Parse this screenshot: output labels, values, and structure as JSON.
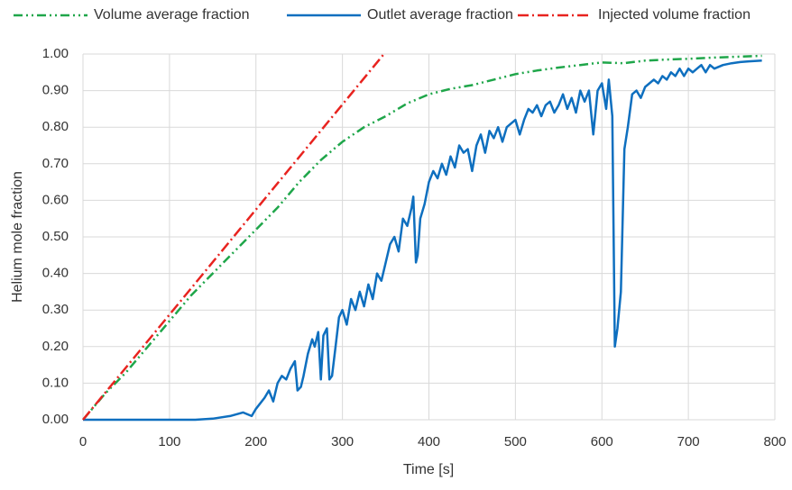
{
  "chart_data": {
    "type": "line",
    "xlabel": "Time [s]",
    "ylabel": "Helium mole fraction",
    "xlim": [
      0,
      800
    ],
    "xticks": [
      0,
      100,
      200,
      300,
      400,
      500,
      600,
      700,
      800
    ],
    "ylim": [
      0,
      1
    ],
    "yticks": [
      {
        "value": 0,
        "label": "0.00"
      },
      {
        "value": 0.1,
        "label": "0.10"
      },
      {
        "value": 0.2,
        "label": "0.20"
      },
      {
        "value": 0.3,
        "label": "0.30"
      },
      {
        "value": 0.4,
        "label": "0.40"
      },
      {
        "value": 0.5,
        "label": "0.50"
      },
      {
        "value": 0.6,
        "label": "0.60"
      },
      {
        "value": 0.7,
        "label": "0.70"
      },
      {
        "value": 0.8,
        "label": "0.80"
      },
      {
        "value": 0.9,
        "label": "0.90"
      },
      {
        "value": 1,
        "label": "1.00"
      }
    ],
    "grid": true,
    "legend": "top",
    "series": [
      {
        "name": "Volume average fraction",
        "color": "#1fa64a",
        "dash": "dash-dot-dot",
        "x": [
          0,
          25,
          50,
          75,
          100,
          125,
          150,
          175,
          200,
          225,
          250,
          275,
          300,
          325,
          350,
          375,
          400,
          425,
          450,
          475,
          500,
          525,
          550,
          575,
          600,
          625,
          650,
          675,
          700,
          725,
          750,
          785
        ],
        "values": [
          0,
          0.07,
          0.13,
          0.2,
          0.27,
          0.34,
          0.4,
          0.46,
          0.52,
          0.58,
          0.65,
          0.71,
          0.76,
          0.8,
          0.83,
          0.865,
          0.89,
          0.905,
          0.915,
          0.93,
          0.945,
          0.955,
          0.963,
          0.97,
          0.977,
          0.975,
          0.982,
          0.985,
          0.987,
          0.99,
          0.992,
          0.995
        ]
      },
      {
        "name": "Outlet average fraction",
        "color": "#0e6fbf",
        "dash": "solid",
        "x": [
          0,
          100,
          130,
          150,
          170,
          185,
          195,
          200,
          210,
          215,
          220,
          225,
          230,
          235,
          240,
          245,
          248,
          252,
          255,
          260,
          265,
          268,
          272,
          275,
          278,
          282,
          285,
          288,
          292,
          296,
          300,
          305,
          310,
          315,
          320,
          325,
          330,
          335,
          340,
          345,
          350,
          355,
          360,
          365,
          370,
          375,
          380,
          382,
          385,
          387,
          390,
          395,
          400,
          405,
          410,
          415,
          420,
          425,
          430,
          435,
          440,
          445,
          450,
          455,
          460,
          465,
          470,
          475,
          480,
          485,
          490,
          495,
          500,
          505,
          510,
          515,
          520,
          525,
          530,
          535,
          540,
          545,
          550,
          555,
          560,
          565,
          570,
          575,
          580,
          585,
          590,
          595,
          600,
          605,
          608,
          612,
          615,
          618,
          622,
          626,
          630,
          635,
          640,
          645,
          650,
          655,
          660,
          665,
          670,
          675,
          680,
          685,
          690,
          695,
          700,
          705,
          710,
          715,
          720,
          725,
          730,
          740,
          750,
          760,
          770,
          785
        ],
        "values": [
          0,
          0,
          0,
          0.003,
          0.01,
          0.02,
          0.01,
          0.03,
          0.06,
          0.08,
          0.05,
          0.1,
          0.12,
          0.11,
          0.14,
          0.16,
          0.08,
          0.09,
          0.12,
          0.18,
          0.22,
          0.2,
          0.24,
          0.11,
          0.23,
          0.25,
          0.11,
          0.12,
          0.2,
          0.28,
          0.3,
          0.26,
          0.33,
          0.3,
          0.35,
          0.31,
          0.37,
          0.33,
          0.4,
          0.38,
          0.43,
          0.48,
          0.5,
          0.46,
          0.55,
          0.53,
          0.58,
          0.61,
          0.43,
          0.45,
          0.55,
          0.59,
          0.65,
          0.68,
          0.66,
          0.7,
          0.67,
          0.72,
          0.69,
          0.75,
          0.73,
          0.74,
          0.68,
          0.75,
          0.78,
          0.73,
          0.79,
          0.77,
          0.8,
          0.76,
          0.8,
          0.81,
          0.82,
          0.78,
          0.82,
          0.85,
          0.84,
          0.86,
          0.83,
          0.86,
          0.87,
          0.84,
          0.86,
          0.89,
          0.85,
          0.88,
          0.84,
          0.9,
          0.87,
          0.9,
          0.78,
          0.9,
          0.92,
          0.85,
          0.93,
          0.83,
          0.2,
          0.25,
          0.35,
          0.74,
          0.8,
          0.89,
          0.9,
          0.88,
          0.91,
          0.92,
          0.93,
          0.92,
          0.94,
          0.93,
          0.95,
          0.94,
          0.96,
          0.94,
          0.96,
          0.95,
          0.96,
          0.97,
          0.95,
          0.97,
          0.96,
          0.97,
          0.975,
          0.978,
          0.98,
          0.982
        ]
      },
      {
        "name": "Injected volume fraction",
        "color": "#e8231f",
        "dash": "dash-dot",
        "x": [
          0,
          348
        ],
        "values": [
          0,
          1
        ]
      }
    ]
  }
}
